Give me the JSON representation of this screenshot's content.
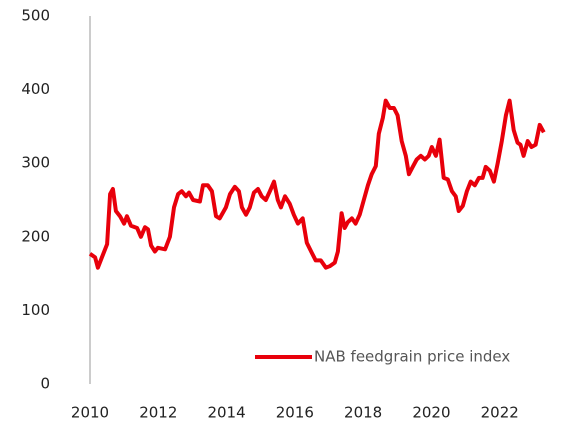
{
  "chart_data": {
    "type": "line",
    "x": [
      2010.0,
      2010.15,
      2010.23,
      2010.35,
      2010.5,
      2010.59,
      2010.67,
      2010.76,
      2010.88,
      2011.0,
      2011.08,
      2011.2,
      2011.38,
      2011.49,
      2011.61,
      2011.7,
      2011.79,
      2011.9,
      2011.99,
      2012.2,
      2012.34,
      2012.46,
      2012.58,
      2012.69,
      2012.81,
      2012.9,
      2013.02,
      2013.22,
      2013.31,
      2013.45,
      2013.57,
      2013.69,
      2013.8,
      2013.98,
      2014.1,
      2014.24,
      2014.36,
      2014.45,
      2014.57,
      2014.68,
      2014.8,
      2014.92,
      2015.03,
      2015.15,
      2015.27,
      2015.39,
      2015.5,
      2015.59,
      2015.71,
      2015.85,
      2015.97,
      2016.09,
      2016.23,
      2016.35,
      2016.5,
      2016.61,
      2016.76,
      2016.91,
      2017.02,
      2017.17,
      2017.26,
      2017.37,
      2017.46,
      2017.55,
      2017.67,
      2017.78,
      2017.9,
      2018.02,
      2018.14,
      2018.25,
      2018.37,
      2018.46,
      2018.58,
      2018.66,
      2018.78,
      2018.9,
      2019.01,
      2019.13,
      2019.25,
      2019.34,
      2019.45,
      2019.57,
      2019.69,
      2019.81,
      2019.92,
      2020.01,
      2020.13,
      2020.24,
      2020.36,
      2020.48,
      2020.6,
      2020.71,
      2020.8,
      2020.92,
      2021.04,
      2021.15,
      2021.27,
      2021.39,
      2021.5,
      2021.59,
      2021.71,
      2021.83,
      2021.94,
      2022.06,
      2022.18,
      2022.29,
      2022.41,
      2022.52,
      2022.61,
      2022.7,
      2022.82,
      2022.93,
      2023.05,
      2023.17,
      2023.29
    ],
    "series": [
      {
        "name": "NAB feedgrain price index",
        "color": "#e8000b",
        "values": [
          177,
          172,
          158,
          172,
          190,
          258,
          265,
          235,
          228,
          218,
          228,
          215,
          212,
          200,
          213,
          210,
          188,
          180,
          185,
          183,
          200,
          240,
          258,
          262,
          255,
          260,
          250,
          248,
          270,
          270,
          262,
          228,
          225,
          240,
          258,
          268,
          262,
          240,
          230,
          240,
          260,
          265,
          255,
          250,
          262,
          275,
          250,
          240,
          255,
          245,
          230,
          218,
          225,
          192,
          178,
          168,
          168,
          158,
          160,
          165,
          180,
          232,
          212,
          220,
          225,
          218,
          230,
          250,
          270,
          285,
          296,
          340,
          362,
          385,
          375,
          375,
          365,
          330,
          310,
          285,
          295,
          305,
          310,
          305,
          310,
          322,
          310,
          332,
          280,
          278,
          262,
          255,
          235,
          242,
          262,
          275,
          270,
          280,
          280,
          295,
          290,
          275,
          300,
          330,
          365,
          385,
          345,
          328,
          325,
          310,
          330,
          322,
          325,
          352,
          342
        ]
      }
    ],
    "xlim": [
      2010,
      2024
    ],
    "xticks": [
      2010,
      2012,
      2014,
      2016,
      2018,
      2020,
      2022
    ],
    "ylim": [
      0,
      500
    ],
    "yticks": [
      0,
      100,
      200,
      300,
      400,
      500
    ],
    "legend": "lower right"
  }
}
